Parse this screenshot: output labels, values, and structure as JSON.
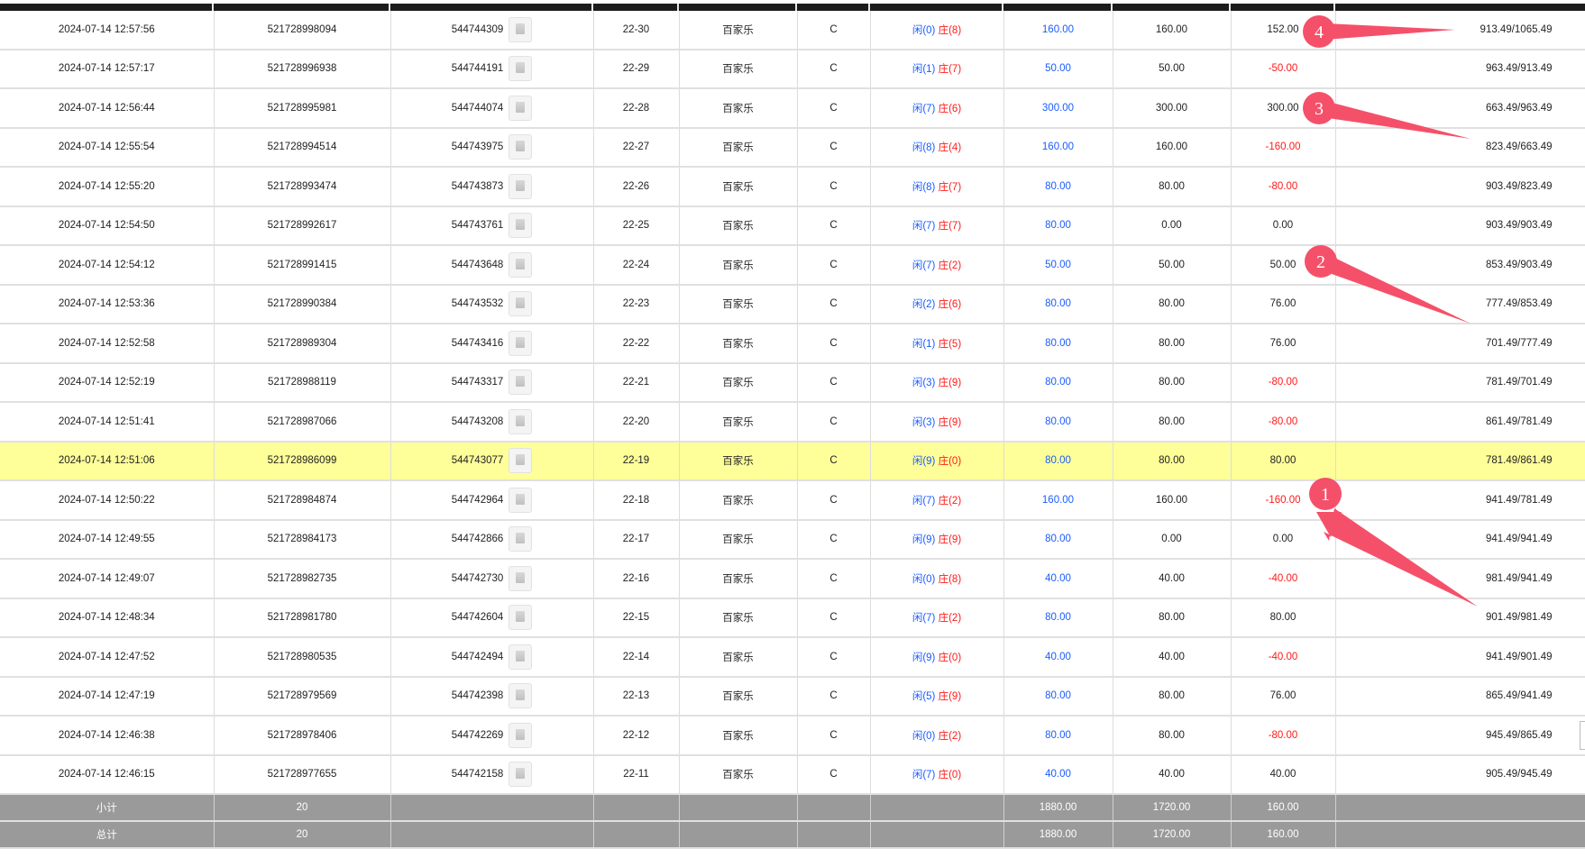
{
  "accent_colors": {
    "player": "#1a5cff",
    "banker": "#ff1a1a",
    "negative": "#ff1a1a",
    "highlight_row": "#ffff99",
    "annotation": "#f5506a",
    "summary_bg": "#9a9a9a"
  },
  "rows": [
    {
      "time": "2024-07-14 12:57:56",
      "order": "521728998094",
      "round": "544744309",
      "shoe": "22-30",
      "game": "百家乐",
      "table": "C",
      "player": "闲(0)",
      "banker": "庄(8)",
      "bet": "160.00",
      "valid": "160.00",
      "result": "152.00",
      "result_neg": false,
      "balance": "913.49/1065.49"
    },
    {
      "time": "2024-07-14 12:57:17",
      "order": "521728996938",
      "round": "544744191",
      "shoe": "22-29",
      "game": "百家乐",
      "table": "C",
      "player": "闲(1)",
      "banker": "庄(7)",
      "bet": "50.00",
      "valid": "50.00",
      "result": "-50.00",
      "result_neg": true,
      "balance": "963.49/913.49"
    },
    {
      "time": "2024-07-14 12:56:44",
      "order": "521728995981",
      "round": "544744074",
      "shoe": "22-28",
      "game": "百家乐",
      "table": "C",
      "player": "闲(7)",
      "banker": "庄(6)",
      "bet": "300.00",
      "valid": "300.00",
      "result": "300.00",
      "result_neg": false,
      "balance": "663.49/963.49"
    },
    {
      "time": "2024-07-14 12:55:54",
      "order": "521728994514",
      "round": "544743975",
      "shoe": "22-27",
      "game": "百家乐",
      "table": "C",
      "player": "闲(8)",
      "banker": "庄(4)",
      "bet": "160.00",
      "valid": "160.00",
      "result": "-160.00",
      "result_neg": true,
      "balance": "823.49/663.49"
    },
    {
      "time": "2024-07-14 12:55:20",
      "order": "521728993474",
      "round": "544743873",
      "shoe": "22-26",
      "game": "百家乐",
      "table": "C",
      "player": "闲(8)",
      "banker": "庄(7)",
      "bet": "80.00",
      "valid": "80.00",
      "result": "-80.00",
      "result_neg": true,
      "balance": "903.49/823.49"
    },
    {
      "time": "2024-07-14 12:54:50",
      "order": "521728992617",
      "round": "544743761",
      "shoe": "22-25",
      "game": "百家乐",
      "table": "C",
      "player": "闲(7)",
      "banker": "庄(7)",
      "bet": "80.00",
      "valid": "0.00",
      "result": "0.00",
      "result_neg": false,
      "balance": "903.49/903.49"
    },
    {
      "time": "2024-07-14 12:54:12",
      "order": "521728991415",
      "round": "544743648",
      "shoe": "22-24",
      "game": "百家乐",
      "table": "C",
      "player": "闲(7)",
      "banker": "庄(2)",
      "bet": "50.00",
      "valid": "50.00",
      "result": "50.00",
      "result_neg": false,
      "balance": "853.49/903.49"
    },
    {
      "time": "2024-07-14 12:53:36",
      "order": "521728990384",
      "round": "544743532",
      "shoe": "22-23",
      "game": "百家乐",
      "table": "C",
      "player": "闲(2)",
      "banker": "庄(6)",
      "bet": "80.00",
      "valid": "80.00",
      "result": "76.00",
      "result_neg": false,
      "balance": "777.49/853.49"
    },
    {
      "time": "2024-07-14 12:52:58",
      "order": "521728989304",
      "round": "544743416",
      "shoe": "22-22",
      "game": "百家乐",
      "table": "C",
      "player": "闲(1)",
      "banker": "庄(5)",
      "bet": "80.00",
      "valid": "80.00",
      "result": "76.00",
      "result_neg": false,
      "balance": "701.49/777.49"
    },
    {
      "time": "2024-07-14 12:52:19",
      "order": "521728988119",
      "round": "544743317",
      "shoe": "22-21",
      "game": "百家乐",
      "table": "C",
      "player": "闲(3)",
      "banker": "庄(9)",
      "bet": "80.00",
      "valid": "80.00",
      "result": "-80.00",
      "result_neg": true,
      "balance": "781.49/701.49"
    },
    {
      "time": "2024-07-14 12:51:41",
      "order": "521728987066",
      "round": "544743208",
      "shoe": "22-20",
      "game": "百家乐",
      "table": "C",
      "player": "闲(3)",
      "banker": "庄(9)",
      "bet": "80.00",
      "valid": "80.00",
      "result": "-80.00",
      "result_neg": true,
      "balance": "861.49/781.49"
    },
    {
      "time": "2024-07-14 12:51:06",
      "order": "521728986099",
      "round": "544743077",
      "shoe": "22-19",
      "game": "百家乐",
      "table": "C",
      "player": "闲(9)",
      "banker": "庄(0)",
      "bet": "80.00",
      "valid": "80.00",
      "result": "80.00",
      "result_neg": false,
      "balance": "781.49/861.49",
      "highlighted": true
    },
    {
      "time": "2024-07-14 12:50:22",
      "order": "521728984874",
      "round": "544742964",
      "shoe": "22-18",
      "game": "百家乐",
      "table": "C",
      "player": "闲(7)",
      "banker": "庄(2)",
      "bet": "160.00",
      "valid": "160.00",
      "result": "-160.00",
      "result_neg": true,
      "balance": "941.49/781.49"
    },
    {
      "time": "2024-07-14 12:49:55",
      "order": "521728984173",
      "round": "544742866",
      "shoe": "22-17",
      "game": "百家乐",
      "table": "C",
      "player": "闲(9)",
      "banker": "庄(9)",
      "bet": "80.00",
      "valid": "0.00",
      "result": "0.00",
      "result_neg": false,
      "balance": "941.49/941.49"
    },
    {
      "time": "2024-07-14 12:49:07",
      "order": "521728982735",
      "round": "544742730",
      "shoe": "22-16",
      "game": "百家乐",
      "table": "C",
      "player": "闲(0)",
      "banker": "庄(8)",
      "bet": "40.00",
      "valid": "40.00",
      "result": "-40.00",
      "result_neg": true,
      "balance": "981.49/941.49"
    },
    {
      "time": "2024-07-14 12:48:34",
      "order": "521728981780",
      "round": "544742604",
      "shoe": "22-15",
      "game": "百家乐",
      "table": "C",
      "player": "闲(7)",
      "banker": "庄(2)",
      "bet": "80.00",
      "valid": "80.00",
      "result": "80.00",
      "result_neg": false,
      "balance": "901.49/981.49"
    },
    {
      "time": "2024-07-14 12:47:52",
      "order": "521728980535",
      "round": "544742494",
      "shoe": "22-14",
      "game": "百家乐",
      "table": "C",
      "player": "闲(9)",
      "banker": "庄(0)",
      "bet": "40.00",
      "valid": "40.00",
      "result": "-40.00",
      "result_neg": true,
      "balance": "941.49/901.49"
    },
    {
      "time": "2024-07-14 12:47:19",
      "order": "521728979569",
      "round": "544742398",
      "shoe": "22-13",
      "game": "百家乐",
      "table": "C",
      "player": "闲(5)",
      "banker": "庄(9)",
      "bet": "80.00",
      "valid": "80.00",
      "result": "76.00",
      "result_neg": false,
      "balance": "865.49/941.49"
    },
    {
      "time": "2024-07-14 12:46:38",
      "order": "521728978406",
      "round": "544742269",
      "shoe": "22-12",
      "game": "百家乐",
      "table": "C",
      "player": "闲(0)",
      "banker": "庄(2)",
      "bet": "80.00",
      "valid": "80.00",
      "result": "-80.00",
      "result_neg": true,
      "balance": "945.49/865.49"
    },
    {
      "time": "2024-07-14 12:46:15",
      "order": "521728977655",
      "round": "544742158",
      "shoe": "22-11",
      "game": "百家乐",
      "table": "C",
      "player": "闲(7)",
      "banker": "庄(0)",
      "bet": "40.00",
      "valid": "40.00",
      "result": "40.00",
      "result_neg": false,
      "balance": "905.49/945.49"
    }
  ],
  "subtotal": {
    "label": "小计",
    "count": "20",
    "bet": "1880.00",
    "valid": "1720.00",
    "result": "160.00"
  },
  "total": {
    "label": "总计",
    "count": "20",
    "bet": "1880.00",
    "valid": "1720.00",
    "result": "160.00"
  },
  "annotations": [
    {
      "label": "4"
    },
    {
      "label": "3"
    },
    {
      "label": "2"
    },
    {
      "label": "1"
    }
  ]
}
